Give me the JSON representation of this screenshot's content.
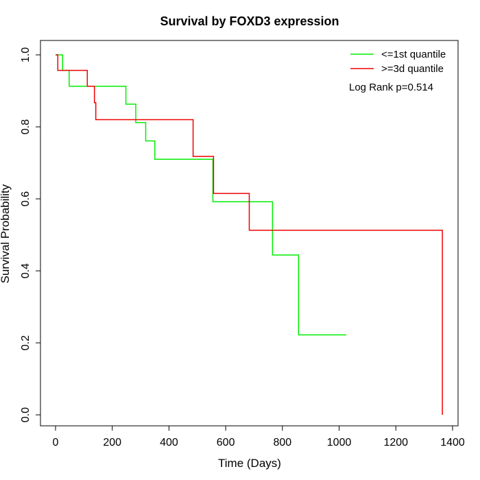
{
  "chart_data": {
    "type": "line",
    "title": "Survival by FOXD3 expression",
    "xlabel": "Time (Days)",
    "ylabel": "Survival Probability",
    "xlim": [
      0,
      1400
    ],
    "ylim": [
      0,
      1
    ],
    "x_ticks": [
      "0",
      "200",
      "400",
      "600",
      "800",
      "1000",
      "1200",
      "1400"
    ],
    "y_ticks": [
      "0.0",
      "0.2",
      "0.4",
      "0.6",
      "0.8",
      "1.0"
    ],
    "legend_position": "top-right",
    "annotation": "Log Rank p=0.514",
    "series": [
      {
        "name": "<=1st quantile",
        "color": "#00ee00",
        "steps": [
          [
            0,
            1.0
          ],
          [
            25,
            1.0
          ],
          [
            25,
            0.957
          ],
          [
            48,
            0.957
          ],
          [
            48,
            0.913
          ],
          [
            248,
            0.913
          ],
          [
            248,
            0.863
          ],
          [
            283,
            0.863
          ],
          [
            283,
            0.812
          ],
          [
            318,
            0.812
          ],
          [
            318,
            0.761
          ],
          [
            350,
            0.761
          ],
          [
            350,
            0.71
          ],
          [
            555,
            0.71
          ],
          [
            555,
            0.592
          ],
          [
            765,
            0.592
          ],
          [
            765,
            0.444
          ],
          [
            857,
            0.444
          ],
          [
            857,
            0.222
          ],
          [
            1025,
            0.222
          ]
        ]
      },
      {
        "name": ">=3d quantile",
        "color": "#ee0000",
        "steps": [
          [
            0,
            1.0
          ],
          [
            8,
            1.0
          ],
          [
            8,
            0.957
          ],
          [
            112,
            0.957
          ],
          [
            112,
            0.913
          ],
          [
            137,
            0.913
          ],
          [
            137,
            0.867
          ],
          [
            142,
            0.867
          ],
          [
            142,
            0.82
          ],
          [
            485,
            0.82
          ],
          [
            485,
            0.718
          ],
          [
            557,
            0.718
          ],
          [
            557,
            0.615
          ],
          [
            683,
            0.615
          ],
          [
            683,
            0.513
          ],
          [
            1364,
            0.513
          ],
          [
            1364,
            0.0
          ]
        ]
      }
    ]
  }
}
